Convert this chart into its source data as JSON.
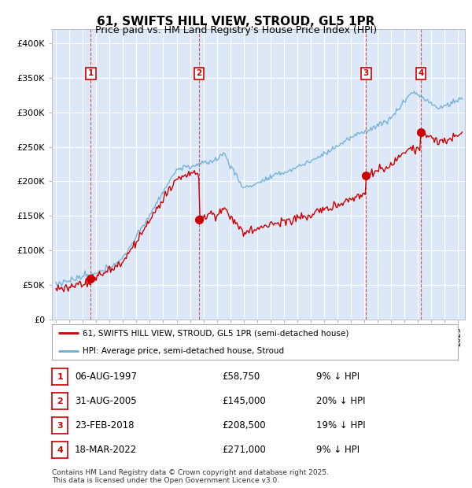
{
  "title": "61, SWIFTS HILL VIEW, STROUD, GL5 1PR",
  "subtitle": "Price paid vs. HM Land Registry's House Price Index (HPI)",
  "ylim": [
    0,
    420000
  ],
  "xlim_start": 1994.7,
  "xlim_end": 2025.5,
  "yticks": [
    0,
    50000,
    100000,
    150000,
    200000,
    250000,
    300000,
    350000,
    400000
  ],
  "ytick_labels": [
    "£0",
    "£50K",
    "£100K",
    "£150K",
    "£200K",
    "£250K",
    "£300K",
    "£350K",
    "£400K"
  ],
  "background_color": "#dce8f7",
  "grid_color": "#ffffff",
  "line_color_red": "#cc0000",
  "line_color_blue": "#6baed6",
  "purchases": [
    {
      "num": 1,
      "date": "06-AUG-1997",
      "year": 1997.6,
      "price": 58750
    },
    {
      "num": 2,
      "date": "31-AUG-2005",
      "year": 2005.67,
      "price": 145000
    },
    {
      "num": 3,
      "date": "23-FEB-2018",
      "year": 2018.13,
      "price": 208500
    },
    {
      "num": 4,
      "date": "18-MAR-2022",
      "year": 2022.21,
      "price": 271000
    }
  ],
  "legend_label_red": "61, SWIFTS HILL VIEW, STROUD, GL5 1PR (semi-detached house)",
  "legend_label_blue": "HPI: Average price, semi-detached house, Stroud",
  "footer": "Contains HM Land Registry data © Crown copyright and database right 2025.\nThis data is licensed under the Open Government Licence v3.0.",
  "table_rows": [
    {
      "num": 1,
      "date": "06-AUG-1997",
      "price": "£58,750",
      "hpi": "9% ↓ HPI"
    },
    {
      "num": 2,
      "date": "31-AUG-2005",
      "price": "£145,000",
      "hpi": "20% ↓ HPI"
    },
    {
      "num": 3,
      "date": "23-FEB-2018",
      "price": "£208,500",
      "hpi": "19% ↓ HPI"
    },
    {
      "num": 4,
      "date": "18-MAR-2022",
      "price": "£271,000",
      "hpi": "9% ↓ HPI"
    }
  ]
}
